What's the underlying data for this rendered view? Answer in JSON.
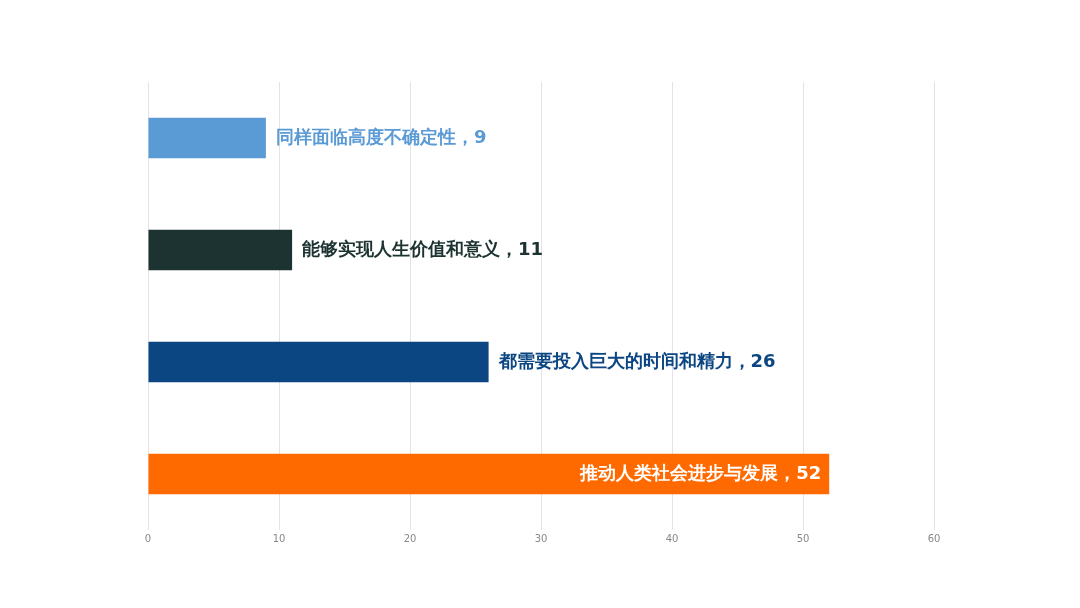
{
  "chart_data": {
    "type": "bar",
    "orientation": "horizontal",
    "categories": [
      null,
      null,
      null,
      null
    ],
    "values": [
      9,
      11,
      26,
      52
    ],
    "colors": [
      "#5b9bd5",
      "#1c3331",
      "#0b4582",
      "#ff6a00"
    ],
    "value_labels": [
      "同样面临高度不确定性，9",
      "能够实现人生价值和意义，11",
      "都需要投入巨大的时间和精力，26",
      "推动人类社会进步与发展，52"
    ],
    "xlim": [
      0,
      60
    ],
    "xticks": [
      0,
      10,
      20,
      30,
      40,
      50,
      60
    ],
    "grid": "x"
  }
}
